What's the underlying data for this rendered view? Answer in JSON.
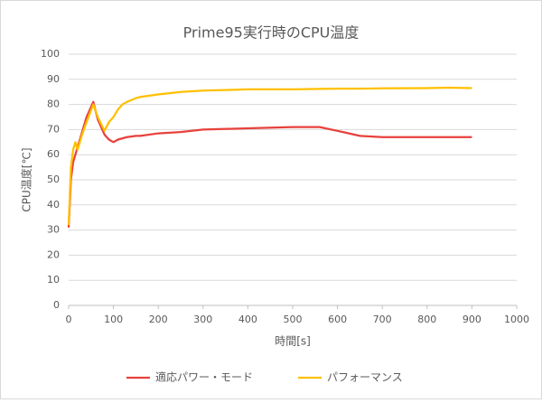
{
  "chart_data": {
    "type": "line",
    "title": "Prime95実行時のCPU温度",
    "x_label": "時間[s]",
    "y_label": "CPU温度[℃]",
    "x": [
      0,
      5,
      10,
      15,
      20,
      30,
      40,
      55,
      65,
      80,
      90,
      100,
      110,
      120,
      130,
      150,
      160,
      200,
      250,
      300,
      400,
      500,
      560,
      600,
      650,
      700,
      800,
      850,
      900
    ],
    "series": [
      {
        "name": "適応パワー・モード",
        "color": "#e8413c",
        "values": [
          31,
          50,
          57,
          60,
          63,
          69,
          75,
          81,
          74,
          68,
          66,
          65,
          66,
          66.5,
          67,
          67.5,
          67.5,
          68.5,
          69,
          70,
          70.5,
          71,
          71,
          69.5,
          67.5,
          67,
          67,
          67,
          67
        ]
      },
      {
        "name": "パフォーマンス",
        "color": "#ffc000",
        "values": [
          32,
          55,
          62,
          65,
          62,
          68,
          73,
          80,
          75,
          69.5,
          73,
          75,
          78,
          80,
          81,
          82.5,
          83,
          84,
          85,
          85.5,
          86,
          86,
          86.2,
          86.3,
          86.3,
          86.4,
          86.5,
          86.7,
          86.5
        ]
      }
    ],
    "xlim": [
      0,
      1000
    ],
    "xticks": [
      0,
      100,
      200,
      300,
      400,
      500,
      600,
      700,
      800,
      900,
      1000
    ],
    "ylim": [
      0,
      100
    ],
    "yticks": [
      0,
      10,
      20,
      30,
      40,
      50,
      60,
      70,
      80,
      90,
      100
    ],
    "grid": true,
    "legend": "bottom"
  }
}
